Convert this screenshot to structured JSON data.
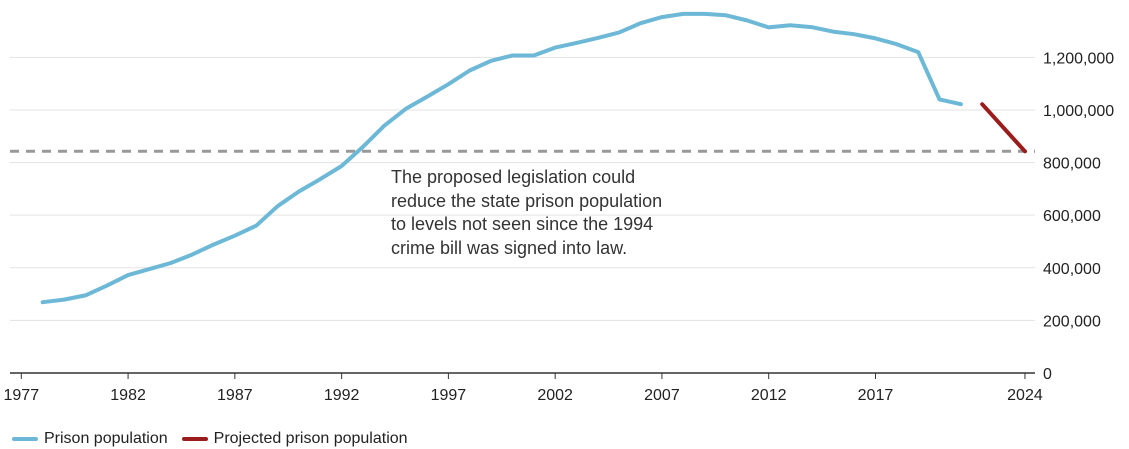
{
  "chart_data": {
    "type": "line",
    "x_ticks": [
      "1977",
      "1982",
      "1987",
      "1992",
      "1997",
      "2002",
      "2007",
      "2012",
      "2017",
      "2024"
    ],
    "y_ticks": [
      "0",
      "200,000",
      "400,000",
      "600,000",
      "800,000",
      "1,000,000",
      "1,200,000"
    ],
    "y_tick_values": [
      0,
      200000,
      400000,
      600000,
      800000,
      1000000,
      1200000
    ],
    "xlim": [
      1977,
      2025
    ],
    "ylim": [
      0,
      1380000
    ],
    "grid": true,
    "legend_placement": "bottom-left",
    "series": [
      {
        "name": "Prison population",
        "color": "#6db8d6",
        "x": [
          1978,
          1979,
          1980,
          1981,
          1982,
          1983,
          1984,
          1985,
          1986,
          1987,
          1988,
          1989,
          1990,
          1991,
          1992,
          1993,
          1994,
          1995,
          1996,
          1997,
          1998,
          1999,
          2000,
          2001,
          2002,
          2003,
          2004,
          2005,
          2006,
          2007,
          2008,
          2009,
          2010,
          2011,
          2012,
          2013,
          2014,
          2015,
          2016,
          2017,
          2018,
          2019,
          2020,
          2021
        ],
        "y": [
          269000,
          279000,
          295000,
          332000,
          372000,
          395000,
          418000,
          450000,
          488000,
          522000,
          560000,
          634000,
          690000,
          737000,
          787000,
          860000,
          940000,
          1004000,
          1050000,
          1098000,
          1150000,
          1187000,
          1207000,
          1207000,
          1237000,
          1255000,
          1274000,
          1295000,
          1330000,
          1353000,
          1365000,
          1365000,
          1360000,
          1340000,
          1314000,
          1322000,
          1315000,
          1298000,
          1288000,
          1272000,
          1250000,
          1220000,
          1040000,
          1022000
        ]
      },
      {
        "name": "Projected prison population",
        "color": "#9b1c1c",
        "x": [
          2022,
          2024
        ],
        "y": [
          1022000,
          843000
        ]
      }
    ],
    "reference_line": {
      "y": 843000,
      "style": "dashed",
      "color": "#999999"
    },
    "annotation": "The proposed legislation could reduce the state prison population to levels not seen since the 1994 crime bill was signed into law."
  }
}
